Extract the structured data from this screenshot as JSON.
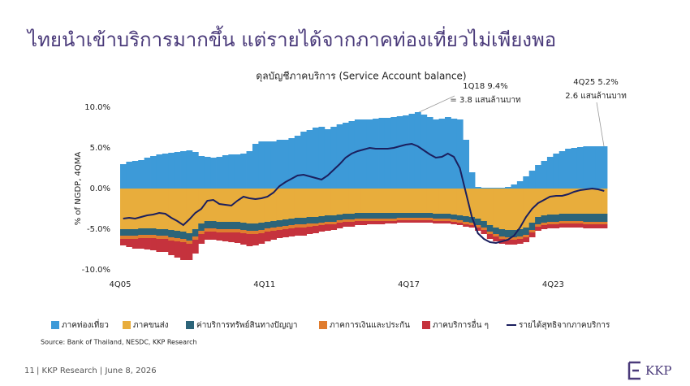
{
  "slide": {
    "title": "ไทยนำเข้าบริการมากขึ้น แต่รายได้จากภาคท่องเที่ยวไม่เพียงพอ",
    "page_number": "11",
    "footer": "| KKP Research | June 8, 2026",
    "logo": "KKP"
  },
  "chart_data": {
    "type": "bar",
    "stacked": true,
    "title": "ดุลบัญชีภาคบริการ (Service Account balance)",
    "y_label": "% of NGDP, 4QMA",
    "source": "Source: Bank of Thailand, NESDC, KKP Research",
    "annotations": [
      {
        "text": "1Q18  9.4%",
        "sub": "= 3.8 แสนล้านบาท"
      },
      {
        "text": "4Q25  5.2%",
        "sub": "2.6 แสนล้านบาท"
      }
    ],
    "categories": [
      "4Q05",
      null,
      null,
      null,
      null,
      null,
      null,
      null,
      null,
      null,
      null,
      null,
      null,
      null,
      null,
      null,
      null,
      null,
      null,
      null,
      null,
      null,
      null,
      null,
      "4Q11",
      null,
      null,
      null,
      null,
      null,
      null,
      null,
      null,
      null,
      null,
      null,
      null,
      null,
      null,
      null,
      null,
      null,
      null,
      null,
      null,
      null,
      null,
      null,
      "4Q17",
      null,
      null,
      null,
      null,
      null,
      null,
      null,
      null,
      null,
      null,
      null,
      null,
      null,
      null,
      null,
      null,
      null,
      null,
      null,
      null,
      null,
      null,
      null,
      "4Q23",
      null,
      null,
      null,
      null,
      null,
      null,
      null,
      null
    ],
    "ylim": [
      -10,
      10
    ],
    "yticks": [
      {
        "value": -10,
        "label": "-10.0%"
      },
      {
        "value": -5,
        "label": "-5.0%"
      },
      {
        "value": 0,
        "label": "0.0%"
      },
      {
        "value": 5,
        "label": "5.0%"
      },
      {
        "value": 10,
        "label": "10.0%"
      }
    ],
    "grid": false,
    "legend": "bottom",
    "series": [
      {
        "name": "ภาคท่องเที่ยว",
        "color": "#3d9ad8",
        "values": [
          3.0,
          3.3,
          3.4,
          3.5,
          3.8,
          4.0,
          4.2,
          4.3,
          4.4,
          4.5,
          4.6,
          4.7,
          4.5,
          4.0,
          3.9,
          3.8,
          3.9,
          4.1,
          4.2,
          4.2,
          4.3,
          4.6,
          5.5,
          5.8,
          5.8,
          5.8,
          6.0,
          6.0,
          6.2,
          6.5,
          7.0,
          7.2,
          7.5,
          7.6,
          7.3,
          7.6,
          7.9,
          8.1,
          8.3,
          8.5,
          8.5,
          8.5,
          8.6,
          8.7,
          8.7,
          8.8,
          8.9,
          9.0,
          9.2,
          9.4,
          9.1,
          8.8,
          8.5,
          8.6,
          8.8,
          8.6,
          8.5,
          6.0,
          2.0,
          0.2,
          0.1,
          0.1,
          0.1,
          0.1,
          0.2,
          0.5,
          0.9,
          1.5,
          2.2,
          2.9,
          3.4,
          3.9,
          4.3,
          4.6,
          4.9,
          5.0,
          5.1,
          5.2,
          5.2,
          5.2,
          5.2
        ]
      },
      {
        "name": "ภาคขนส่ง",
        "color": "#e8ad3c",
        "values": [
          -5.0,
          -5.0,
          -5.0,
          -4.9,
          -4.9,
          -4.9,
          -5.0,
          -5.0,
          -5.1,
          -5.2,
          -5.3,
          -5.5,
          -5.0,
          -4.3,
          -4.0,
          -4.0,
          -4.1,
          -4.1,
          -4.1,
          -4.1,
          -4.2,
          -4.3,
          -4.3,
          -4.2,
          -4.1,
          -4.0,
          -3.9,
          -3.8,
          -3.7,
          -3.6,
          -3.6,
          -3.5,
          -3.5,
          -3.4,
          -3.3,
          -3.3,
          -3.2,
          -3.1,
          -3.1,
          -3.0,
          -3.0,
          -3.0,
          -3.0,
          -3.0,
          -3.0,
          -3.0,
          -3.0,
          -3.0,
          -3.0,
          -3.0,
          -3.0,
          -3.0,
          -3.1,
          -3.1,
          -3.1,
          -3.2,
          -3.3,
          -3.4,
          -3.5,
          -3.7,
          -4.0,
          -4.5,
          -4.8,
          -5.0,
          -5.1,
          -5.1,
          -5.0,
          -4.8,
          -4.2,
          -3.5,
          -3.3,
          -3.2,
          -3.2,
          -3.1,
          -3.1,
          -3.1,
          -3.1,
          -3.1,
          -3.1,
          -3.1,
          -3.1
        ]
      },
      {
        "name": "ค่าบริการทรัพย์สินทางปัญญา",
        "color": "#2c6479",
        "values": [
          -0.8,
          -0.8,
          -0.8,
          -0.8,
          -0.8,
          -0.8,
          -0.8,
          -0.8,
          -0.9,
          -0.9,
          -0.9,
          -0.9,
          -0.9,
          -0.9,
          -0.9,
          -0.9,
          -0.9,
          -0.9,
          -0.9,
          -0.9,
          -0.9,
          -0.9,
          -0.9,
          -0.9,
          -0.8,
          -0.8,
          -0.8,
          -0.8,
          -0.8,
          -0.8,
          -0.8,
          -0.8,
          -0.8,
          -0.8,
          -0.8,
          -0.8,
          -0.7,
          -0.7,
          -0.7,
          -0.7,
          -0.7,
          -0.7,
          -0.7,
          -0.7,
          -0.7,
          -0.7,
          -0.6,
          -0.6,
          -0.6,
          -0.6,
          -0.6,
          -0.6,
          -0.6,
          -0.6,
          -0.6,
          -0.6,
          -0.6,
          -0.7,
          -0.7,
          -0.8,
          -0.8,
          -0.8,
          -0.8,
          -0.9,
          -0.9,
          -0.9,
          -0.9,
          -0.9,
          -0.9,
          -0.9,
          -0.9,
          -0.9,
          -0.9,
          -0.9,
          -0.9,
          -0.9,
          -0.9,
          -1.0,
          -1.0,
          -1.0,
          -1.0
        ]
      },
      {
        "name": "ภาคการเงินและประกัน",
        "color": "#e07c2e",
        "values": [
          -0.4,
          -0.4,
          -0.4,
          -0.4,
          -0.4,
          -0.4,
          -0.4,
          -0.4,
          -0.4,
          -0.4,
          -0.4,
          -0.4,
          -0.4,
          -0.4,
          -0.4,
          -0.4,
          -0.4,
          -0.4,
          -0.4,
          -0.4,
          -0.4,
          -0.4,
          -0.4,
          -0.4,
          -0.4,
          -0.4,
          -0.4,
          -0.4,
          -0.4,
          -0.4,
          -0.4,
          -0.4,
          -0.3,
          -0.3,
          -0.3,
          -0.3,
          -0.3,
          -0.3,
          -0.3,
          -0.3,
          -0.3,
          -0.3,
          -0.3,
          -0.3,
          -0.3,
          -0.3,
          -0.3,
          -0.3,
          -0.3,
          -0.3,
          -0.3,
          -0.3,
          -0.3,
          -0.3,
          -0.3,
          -0.3,
          -0.3,
          -0.3,
          -0.3,
          -0.3,
          -0.3,
          -0.3,
          -0.3,
          -0.3,
          -0.3,
          -0.3,
          -0.3,
          -0.3,
          -0.3,
          -0.3,
          -0.3,
          -0.3,
          -0.3,
          -0.3,
          -0.3,
          -0.3,
          -0.3,
          -0.3,
          -0.3,
          -0.3,
          -0.3
        ]
      },
      {
        "name": "ภาคบริการอื่น ๆ",
        "color": "#c5323d",
        "values": [
          -0.8,
          -1.0,
          -1.2,
          -1.3,
          -1.4,
          -1.5,
          -1.6,
          -1.6,
          -1.8,
          -2.0,
          -2.2,
          -2.0,
          -1.7,
          -1.2,
          -1.0,
          -1.0,
          -1.0,
          -1.1,
          -1.2,
          -1.3,
          -1.4,
          -1.5,
          -1.4,
          -1.3,
          -1.2,
          -1.1,
          -1.0,
          -1.0,
          -1.0,
          -1.0,
          -1.0,
          -0.9,
          -0.9,
          -0.8,
          -0.8,
          -0.7,
          -0.7,
          -0.6,
          -0.6,
          -0.5,
          -0.5,
          -0.4,
          -0.4,
          -0.4,
          -0.3,
          -0.3,
          -0.3,
          -0.3,
          -0.3,
          -0.3,
          -0.3,
          -0.3,
          -0.3,
          -0.3,
          -0.3,
          -0.3,
          -0.3,
          -0.3,
          -0.3,
          -0.4,
          -0.5,
          -0.6,
          -0.6,
          -0.6,
          -0.6,
          -0.6,
          -0.6,
          -0.6,
          -0.6,
          -0.5,
          -0.5,
          -0.5,
          -0.5,
          -0.5,
          -0.5,
          -0.5,
          -0.5,
          -0.5,
          -0.5,
          -0.5,
          -0.5
        ]
      },
      {
        "name": "รายได้สุทธิจากภาคบริการ",
        "color": "#1b1f5e",
        "type": "line",
        "values": [
          -3.7,
          -3.6,
          -3.7,
          -3.5,
          -3.3,
          -3.2,
          -3.0,
          -3.1,
          -3.6,
          -4.0,
          -4.5,
          -3.8,
          -3.0,
          -2.5,
          -1.5,
          -1.4,
          -1.9,
          -2.0,
          -2.1,
          -1.5,
          -1.0,
          -1.2,
          -1.3,
          -1.2,
          -1.0,
          -0.5,
          0.3,
          0.8,
          1.2,
          1.6,
          1.7,
          1.5,
          1.3,
          1.1,
          1.6,
          2.3,
          3.0,
          3.8,
          4.3,
          4.6,
          4.8,
          5.0,
          4.9,
          4.9,
          4.9,
          5.0,
          5.2,
          5.4,
          5.5,
          5.2,
          4.7,
          4.2,
          3.8,
          3.9,
          4.3,
          3.9,
          2.5,
          -0.5,
          -3.5,
          -5.5,
          -6.2,
          -6.6,
          -6.7,
          -6.5,
          -6.3,
          -5.8,
          -4.8,
          -3.5,
          -2.5,
          -1.8,
          -1.4,
          -1.0,
          -0.9,
          -0.9,
          -0.7,
          -0.4,
          -0.2,
          -0.1,
          0.0,
          -0.1,
          -0.3
        ]
      }
    ]
  }
}
